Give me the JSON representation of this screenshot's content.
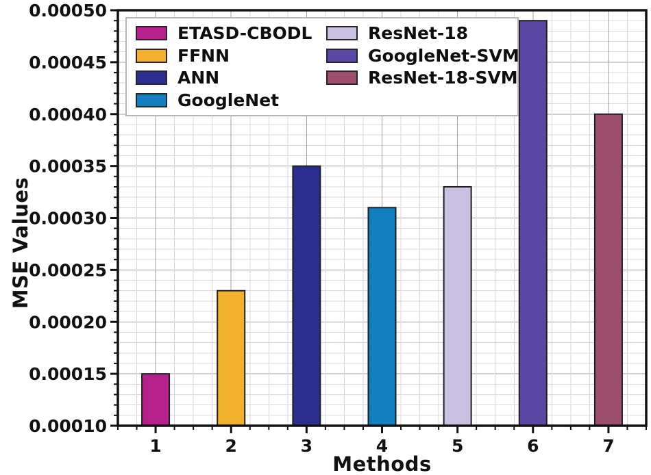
{
  "chart_data": {
    "type": "bar",
    "title": "",
    "xlabel": "Methods",
    "ylabel": "MSE Values",
    "categories": [
      "1",
      "2",
      "3",
      "4",
      "5",
      "6",
      "7"
    ],
    "series": [
      {
        "name": "MSE Values",
        "values": [
          0.00015,
          0.00023,
          0.00035,
          0.00031,
          0.00033,
          0.00049,
          0.0004
        ]
      }
    ],
    "bar_colors": [
      "#b6208c",
      "#f2b02d",
      "#2b2e8c",
      "#1280c0",
      "#c9c1e1",
      "#5a48a4",
      "#9c4e6d"
    ],
    "legend": {
      "position": "upper left",
      "entries": [
        {
          "label": "ETASD-CBODL",
          "color": "#b6208c"
        },
        {
          "label": "FFNN",
          "color": "#f2b02d"
        },
        {
          "label": "ANN",
          "color": "#2b2e8c"
        },
        {
          "label": "GoogleNet",
          "color": "#1280c0"
        },
        {
          "label": "ResNet-18",
          "color": "#c9c1e1"
        },
        {
          "label": "GoogleNet-SVM",
          "color": "#5a48a4"
        },
        {
          "label": "ResNet-18-SVM",
          "color": "#9c4e6d"
        }
      ]
    },
    "ylim": [
      0.0001,
      0.0005
    ],
    "y_major_step": 5e-05,
    "y_minor_step": 1e-05,
    "y_tick_labels": [
      "0.00010",
      "0.00015",
      "0.00020",
      "0.00025",
      "0.00030",
      "0.00035",
      "0.00040",
      "0.00045",
      "0.00050"
    ],
    "x_tick_labels": [
      "1",
      "2",
      "3",
      "4",
      "5",
      "6",
      "7"
    ],
    "grid": "major and minor gridlines on both axes"
  },
  "colors": {
    "background": "#ffffff",
    "grid_minor": "#d8d8d8",
    "grid_major": "#9f9f9f",
    "spine": "#111111",
    "bar_edge": "#1f1f1f",
    "tick": "#111111",
    "text": "#111111",
    "legend_border": "#b7b7b7"
  }
}
